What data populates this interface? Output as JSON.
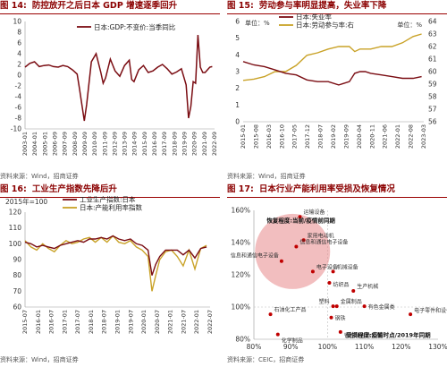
{
  "colors": {
    "primary": "#7a0c12",
    "secondary": "#c9a227",
    "title": "#8b0000",
    "bubble": "#e8898a",
    "dot": "#c00000"
  },
  "panels": [
    {
      "num": "图 14:",
      "title": "防控放开之后日本 GDP 增速逐季回升",
      "source": "资料来源：Wind，招商证券"
    },
    {
      "num": "图 15:",
      "title": "劳动参与率明显提高，失业率下降",
      "source": "资料来源：Wind，招商证券"
    },
    {
      "num": "图 16:",
      "title": "工业生产指数先降后升",
      "source": "资料来源：Wind，招商证券"
    },
    {
      "num": "图 17:",
      "title": "日本行业产能利用率受损及恢复情况",
      "source": "资料来源：CEIC，招商证券"
    }
  ],
  "chart_data": [
    {
      "type": "line",
      "legend_position": "top-center",
      "ylim": [
        -10,
        10
      ],
      "yticks": [
        "10",
        "8",
        "6",
        "4",
        "2",
        "0",
        "-2",
        "-4",
        "-6",
        "-8",
        "-10"
      ],
      "xticks": [
        "2003-01",
        "2004-01",
        "2005-01",
        "2006-09",
        "2007-09",
        "2008-09",
        "2009-09",
        "2010-09",
        "2011-09",
        "2012-09",
        "2013-09",
        "2014-09",
        "2015-09",
        "2016-09",
        "2017-09",
        "2018-09",
        "2019-09",
        "2020-09",
        "2021-09",
        "2022-09"
      ],
      "x": [
        2003.0,
        2003.5,
        2004.0,
        2004.5,
        2005.0,
        2005.5,
        2006.0,
        2006.5,
        2007.0,
        2007.5,
        2008.0,
        2008.5,
        2008.75,
        2009.0,
        2009.25,
        2009.5,
        2010.0,
        2010.5,
        2011.0,
        2011.25,
        2011.5,
        2012.0,
        2012.5,
        2013.0,
        2013.5,
        2014.0,
        2014.25,
        2014.5,
        2015.0,
        2015.5,
        2016.0,
        2016.5,
        2017.0,
        2017.5,
        2018.0,
        2018.5,
        2019.0,
        2019.5,
        2020.0,
        2020.25,
        2020.5,
        2020.75,
        2021.0,
        2021.25,
        2021.5,
        2021.75,
        2022.0,
        2022.5,
        2022.75
      ],
      "series": [
        {
          "name": "日本:GDP:不变价:当季同比",
          "values": [
            1.5,
            2.2,
            2.5,
            1.6,
            1.8,
            1.9,
            1.6,
            1.5,
            1.8,
            1.6,
            1.0,
            0.2,
            -2.5,
            -5.5,
            -8.5,
            -5.5,
            2.5,
            4.0,
            0.5,
            -1.5,
            -0.5,
            3.0,
            0.8,
            -0.2,
            1.8,
            2.8,
            -0.8,
            -1.2,
            1.0,
            1.8,
            0.5,
            0.8,
            1.5,
            2.0,
            1.2,
            0.2,
            0.6,
            1.2,
            -1.8,
            -8.0,
            -5.8,
            -1.2,
            -1.5,
            7.5,
            1.5,
            0.5,
            0.5,
            1.5,
            1.6
          ]
        }
      ]
    },
    {
      "type": "line",
      "unit_left": "单位：%",
      "unit_right": "单位：%",
      "ylim_left": [
        0,
        6
      ],
      "ylim_right": [
        56,
        64
      ],
      "yticks_left": [
        "6",
        "5",
        "4",
        "3",
        "2",
        "1",
        "0"
      ],
      "yticks_right": [
        "64",
        "63",
        "62",
        "61",
        "60",
        "59",
        "58",
        "57",
        "56"
      ],
      "xticks": [
        "2015-01",
        "2015-08",
        "2016-03",
        "2016-10",
        "2017-05",
        "2017-12",
        "2018-07",
        "2019-02",
        "2019-09",
        "2020-04",
        "2020-11",
        "2021-06",
        "2022-01",
        "2022-08",
        "2023-03"
      ],
      "x": [
        2015.0,
        2015.5,
        2016.0,
        2016.5,
        2017.0,
        2017.5,
        2018.0,
        2018.5,
        2019.0,
        2019.5,
        2020.0,
        2020.25,
        2020.5,
        2020.75,
        2021.0,
        2021.5,
        2022.0,
        2022.5,
        2023.0,
        2023.4
      ],
      "series": [
        {
          "name": "日本:失业率",
          "axis": "left",
          "values": [
            3.6,
            3.4,
            3.3,
            3.1,
            2.9,
            2.8,
            2.5,
            2.4,
            2.4,
            2.2,
            2.4,
            2.9,
            3.0,
            3.0,
            2.9,
            2.8,
            2.7,
            2.6,
            2.6,
            2.7
          ]
        },
        {
          "name": "日本:劳动参与率:右",
          "axis": "right",
          "values": [
            59.3,
            59.4,
            59.6,
            60.0,
            60.0,
            60.5,
            61.3,
            61.5,
            61.8,
            62.0,
            62.0,
            61.6,
            61.8,
            61.8,
            61.8,
            62.0,
            62.0,
            62.3,
            62.8,
            63.0
          ]
        }
      ]
    },
    {
      "type": "line",
      "unit_label": "2015年=100",
      "ylim": [
        60,
        120
      ],
      "yticks": [
        "120",
        "110",
        "100",
        "90",
        "80",
        "70",
        "60"
      ],
      "xticks": [
        "2015-07",
        "2016-01",
        "2016-07",
        "2017-01",
        "2017-07",
        "2018-01",
        "2018-07",
        "2019-01",
        "2019-07",
        "2020-01",
        "2020-07",
        "2021-01",
        "2021-07",
        "2022-01",
        "2022-07"
      ],
      "x": [
        2015.0,
        2015.25,
        2015.5,
        2015.75,
        2016.0,
        2016.25,
        2016.5,
        2016.75,
        2017.0,
        2017.25,
        2017.5,
        2017.75,
        2018.0,
        2018.25,
        2018.5,
        2018.75,
        2019.0,
        2019.25,
        2019.5,
        2019.75,
        2020.0,
        2020.25,
        2020.42,
        2020.58,
        2020.75,
        2021.0,
        2021.25,
        2021.5,
        2021.75,
        2022.0,
        2022.25,
        2022.5,
        2022.75
      ],
      "series": [
        {
          "name": "工业生产指数:日本",
          "values": [
            101,
            100,
            98,
            99,
            98,
            97,
            99,
            100,
            101,
            102,
            101,
            103,
            103,
            104,
            103,
            105,
            103,
            102,
            103,
            100,
            99,
            96,
            80,
            87,
            92,
            96,
            96,
            96,
            93,
            96,
            91,
            97,
            98
          ]
        },
        {
          "name": "日本:产能利用率指数",
          "values": [
            102,
            98,
            96,
            100,
            97,
            95,
            99,
            102,
            100,
            101,
            103,
            104,
            101,
            104,
            101,
            105,
            101,
            100,
            102,
            98,
            96,
            92,
            70,
            80,
            90,
            95,
            96,
            92,
            86,
            96,
            84,
            97,
            99
          ]
        }
      ]
    },
    {
      "type": "scatter",
      "xlim": [
        0.8,
        1.3
      ],
      "ylim": [
        0.8,
        1.6
      ],
      "xticks": [
        "80%",
        "90%",
        "100%",
        "110%",
        "120%",
        "130%"
      ],
      "yticks": [
        "160%",
        "140%",
        "120%",
        "100%",
        "80%"
      ],
      "annotation_top": "恢复程度:当前/疫情前同期",
      "annotation_bottom": "受损程度:疫情时点/2019年同期",
      "points": [
        {
          "label": "运输设备",
          "x": 0.925,
          "y": 1.56
        },
        {
          "label": "家用电动机",
          "x": 0.935,
          "y": 1.415
        },
        {
          "label": "信息和通信电子设备",
          "x": 0.915,
          "y": 1.375
        },
        {
          "label": "信息和通信电子设备",
          "x": 0.875,
          "y": 1.285
        },
        {
          "label": "电子设备",
          "x": 0.96,
          "y": 1.22
        },
        {
          "label": "机械设备",
          "x": 1.015,
          "y": 1.22
        },
        {
          "label": "纺织品",
          "x": 1.005,
          "y": 1.15
        },
        {
          "label": "生产机械",
          "x": 1.07,
          "y": 1.1
        },
        {
          "label": "金属制品",
          "x": 1.025,
          "y": 1.005
        },
        {
          "label": "塑料",
          "x": 1.015,
          "y": 1.005
        },
        {
          "label": "有色金属类",
          "x": 1.1,
          "y": 1.005
        },
        {
          "label": "石油化工产品",
          "x": 0.845,
          "y": 0.955
        },
        {
          "label": "钢铁",
          "x": 1.01,
          "y": 0.935
        },
        {
          "label": "钢铁和有色金属",
          "x": 1.035,
          "y": 0.845
        },
        {
          "label": "化学制品",
          "x": 0.865,
          "y": 0.83
        },
        {
          "label": "电子零件和设备",
          "x": 1.225,
          "y": 0.955
        }
      ]
    }
  ]
}
